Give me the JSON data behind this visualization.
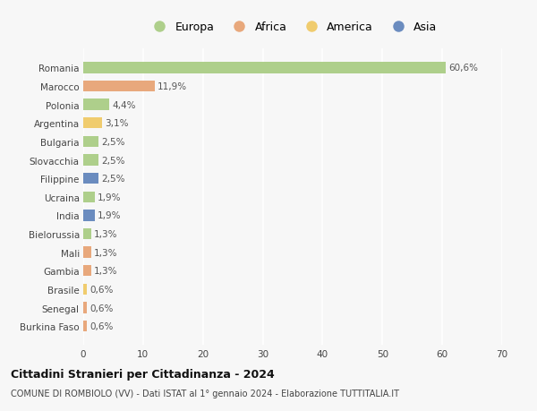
{
  "categories": [
    "Romania",
    "Marocco",
    "Polonia",
    "Argentina",
    "Bulgaria",
    "Slovacchia",
    "Filippine",
    "Ucraina",
    "India",
    "Bielorussia",
    "Mali",
    "Gambia",
    "Brasile",
    "Senegal",
    "Burkina Faso"
  ],
  "values": [
    60.6,
    11.9,
    4.4,
    3.1,
    2.5,
    2.5,
    2.5,
    1.9,
    1.9,
    1.3,
    1.3,
    1.3,
    0.6,
    0.6,
    0.6
  ],
  "labels": [
    "60,6%",
    "11,9%",
    "4,4%",
    "3,1%",
    "2,5%",
    "2,5%",
    "2,5%",
    "1,9%",
    "1,9%",
    "1,3%",
    "1,3%",
    "1,3%",
    "0,6%",
    "0,6%",
    "0,6%"
  ],
  "continents": [
    "Europa",
    "Africa",
    "Europa",
    "America",
    "Europa",
    "Europa",
    "Asia",
    "Europa",
    "Asia",
    "Europa",
    "Africa",
    "Africa",
    "America",
    "Africa",
    "Africa"
  ],
  "colors": {
    "Europa": "#aecf8b",
    "Africa": "#e8a87c",
    "America": "#f0cc6e",
    "Asia": "#6b8cbf"
  },
  "xlim": [
    0,
    70
  ],
  "xticks": [
    0,
    10,
    20,
    30,
    40,
    50,
    60,
    70
  ],
  "title": "Cittadini Stranieri per Cittadinanza - 2024",
  "subtitle": "COMUNE DI ROMBIOLO (VV) - Dati ISTAT al 1° gennaio 2024 - Elaborazione TUTTITALIA.IT",
  "background_color": "#f7f7f7",
  "bar_height": 0.6,
  "grid_color": "#ffffff",
  "label_fontsize": 7.5,
  "tick_fontsize": 7.5,
  "legend_order": [
    "Europa",
    "Africa",
    "America",
    "Asia"
  ]
}
